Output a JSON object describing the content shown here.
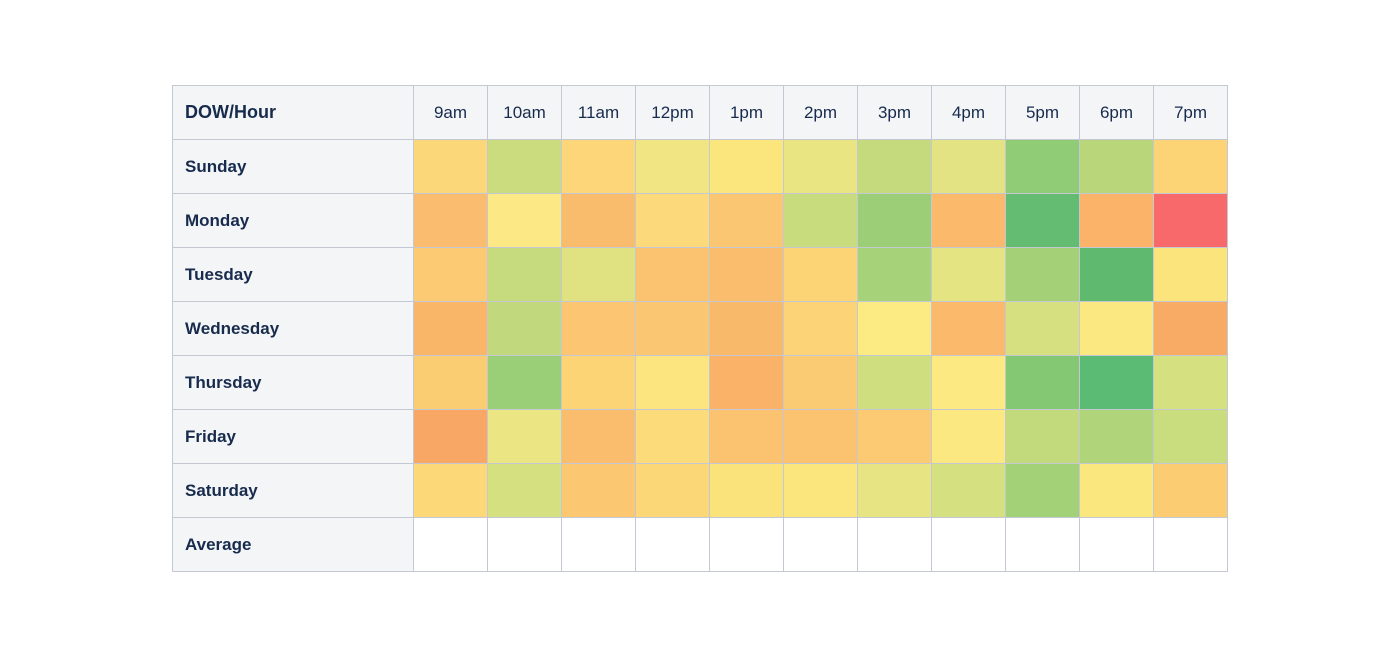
{
  "table": {
    "corner_label": "DOW/Hour",
    "hours": [
      "9am",
      "10am",
      "11am",
      "12pm",
      "1pm",
      "2pm",
      "3pm",
      "4pm",
      "5pm",
      "6pm",
      "7pm"
    ],
    "days": [
      "Sunday",
      "Monday",
      "Tuesday",
      "Wednesday",
      "Thursday",
      "Friday",
      "Saturday"
    ],
    "average_label": "Average"
  },
  "chart_data": {
    "type": "heatmap",
    "title": "",
    "xlabel": "Hour",
    "ylabel": "DOW",
    "x": [
      "9am",
      "10am",
      "11am",
      "12pm",
      "1pm",
      "2pm",
      "3pm",
      "4pm",
      "5pm",
      "6pm",
      "7pm"
    ],
    "y": [
      "Sunday",
      "Monday",
      "Tuesday",
      "Wednesday",
      "Thursday",
      "Friday",
      "Saturday",
      "Average"
    ],
    "values_shown": false,
    "legend": "none",
    "palette": {
      "low_good": "#63be7b",
      "mid": "#ffeb84",
      "high_bad": "#f8696b"
    },
    "cell_colors": [
      [
        "#fcd77a",
        "#cbdc7e",
        "#fcd678",
        "#f0e582",
        "#fbe57d",
        "#e9e583",
        "#c5da7d",
        "#e3e383",
        "#90cb75",
        "#b9d67b",
        "#fcd475"
      ],
      [
        "#fabc6e",
        "#fce985",
        "#f9bc6c",
        "#fcd97a",
        "#fbc672",
        "#c8dc7e",
        "#9bce77",
        "#fab96b",
        "#64bc72",
        "#fab369",
        "#f8696b"
      ],
      [
        "#fbca73",
        "#c6db7e",
        "#e0e282",
        "#fbc370",
        "#fabd6e",
        "#fcd475",
        "#a6d279",
        "#e4e483",
        "#a4d178",
        "#5fba70",
        "#fce47c"
      ],
      [
        "#f9b669",
        "#c1d87c",
        "#fbc571",
        "#fbc671",
        "#f9b96b",
        "#fcd376",
        "#fcea83",
        "#fab96b",
        "#d7e081",
        "#fce881",
        "#f8ab65"
      ],
      [
        "#fbcd73",
        "#9bcf77",
        "#fcd476",
        "#fce57e",
        "#f9b268",
        "#fbcb73",
        "#cfdf80",
        "#fde982",
        "#84c873",
        "#5bbb74",
        "#d5e081"
      ],
      [
        "#f8a864",
        "#ece584",
        "#fabd6e",
        "#fcdc7a",
        "#fbc26f",
        "#fbc26f",
        "#fbca73",
        "#fce880",
        "#c2d97c",
        "#b0d479",
        "#c9dc7e"
      ],
      [
        "#fcd878",
        "#d5e080",
        "#fbc871",
        "#fcd777",
        "#fbe37c",
        "#fbe67e",
        "#e7e483",
        "#d5e080",
        "#a3d177",
        "#fae77e",
        "#fbcc71"
      ]
    ],
    "average_row_values": [
      "",
      "",
      "",
      "",
      "",
      "",
      "",
      "",
      "",
      "",
      ""
    ]
  },
  "colors": {
    "page_bg": "#ffffff",
    "header_bg": "#f4f5f7",
    "text": "#172b4d",
    "grid": "#c3c8d2",
    "empty_cell_bg": "#ffffff"
  }
}
